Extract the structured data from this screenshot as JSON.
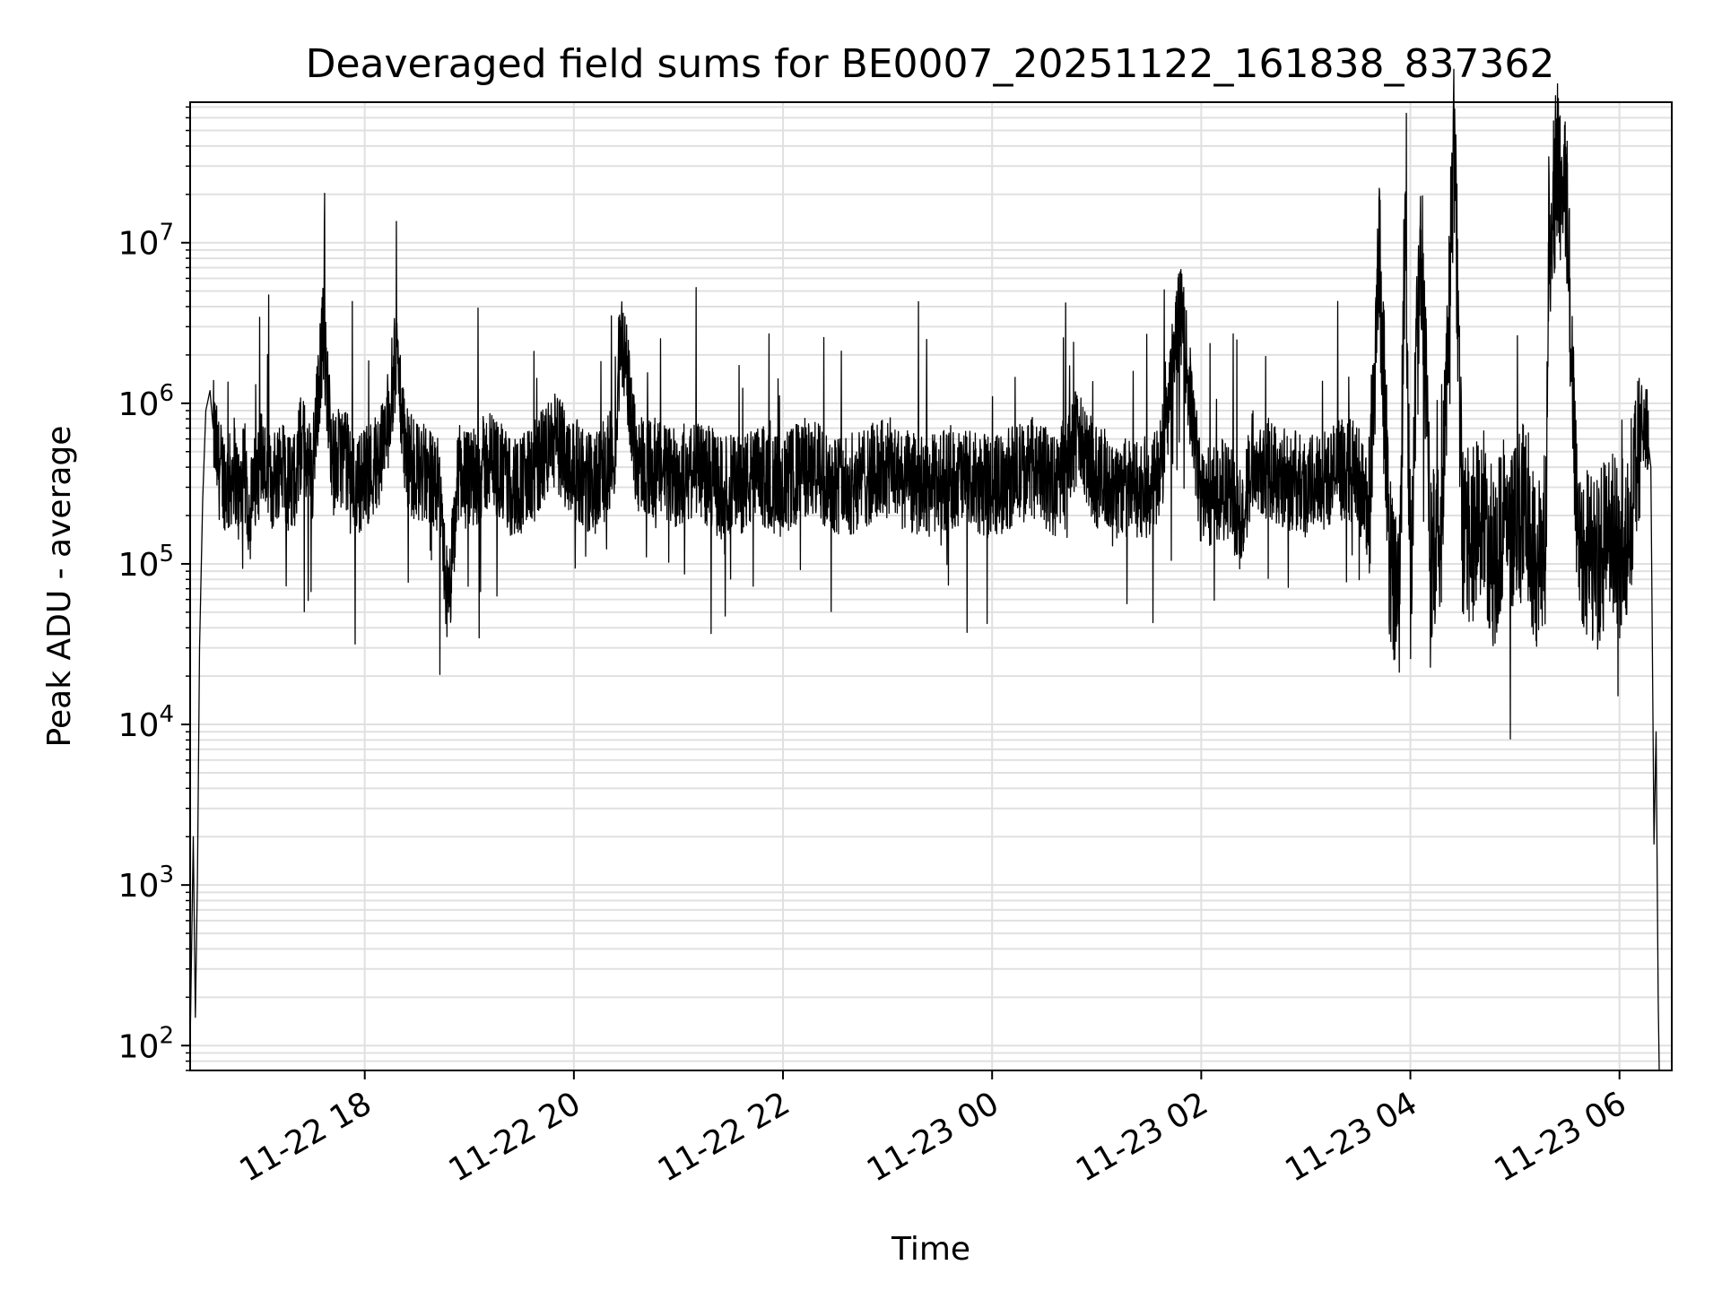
{
  "chart_data": {
    "type": "line",
    "title": "Deaveraged field sums for BE0007_20251122_161838_837362",
    "xlabel": "Time",
    "ylabel": "Peak ADU - average",
    "yscale": "log",
    "ylim": [
      70,
      75000000.0
    ],
    "xlim_hours": [
      16.33,
      30.5
    ],
    "line_color": "#000000",
    "grid_color": "#e0e0e0",
    "grid": true,
    "x_ticks": [
      {
        "hour": 18,
        "label": "11-22 18"
      },
      {
        "hour": 20,
        "label": "11-22 20"
      },
      {
        "hour": 22,
        "label": "11-22 22"
      },
      {
        "hour": 24,
        "label": "11-23 00"
      },
      {
        "hour": 26,
        "label": "11-23 02"
      },
      {
        "hour": 28,
        "label": "11-23 04"
      },
      {
        "hour": 30,
        "label": "11-23 06"
      }
    ],
    "y_ticks": [
      {
        "value": 100,
        "base": "10",
        "exp": "2"
      },
      {
        "value": 1000,
        "base": "10",
        "exp": "3"
      },
      {
        "value": 10000,
        "base": "10",
        "exp": "4"
      },
      {
        "value": 100000,
        "base": "10",
        "exp": "5"
      },
      {
        "value": 1000000,
        "base": "10",
        "exp": "6"
      },
      {
        "value": 10000000,
        "base": "10",
        "exp": "7"
      }
    ],
    "series": [
      {
        "name": "deaveraged field sum",
        "x_hours": [
          16.33,
          16.36,
          16.38,
          16.4,
          16.42,
          16.45,
          16.48,
          16.52,
          16.55,
          16.6,
          16.65,
          16.7,
          16.75,
          16.8,
          16.85,
          16.9,
          17.0,
          17.1,
          17.2,
          17.3,
          17.4,
          17.5,
          17.6,
          17.7,
          17.8,
          17.9,
          18.0,
          18.1,
          18.2,
          18.3,
          18.4,
          18.5,
          18.6,
          18.7,
          18.8,
          18.9,
          19.0,
          19.2,
          19.4,
          19.6,
          19.8,
          20.0,
          20.2,
          20.4,
          20.45,
          20.6,
          20.8,
          21.0,
          21.2,
          21.4,
          21.6,
          21.8,
          22.0,
          22.2,
          22.4,
          22.6,
          22.8,
          23.0,
          23.2,
          23.4,
          23.6,
          23.8,
          24.0,
          24.2,
          24.4,
          24.6,
          24.8,
          25.0,
          25.2,
          25.4,
          25.6,
          25.8,
          26.0,
          26.2,
          26.4,
          26.5,
          26.6,
          26.8,
          27.0,
          27.2,
          27.4,
          27.5,
          27.6,
          27.7,
          27.8,
          27.9,
          27.95,
          28.0,
          28.1,
          28.2,
          28.3,
          28.4,
          28.42,
          28.5,
          28.6,
          28.7,
          28.8,
          28.9,
          29.0,
          29.1,
          29.2,
          29.3,
          29.32,
          29.4,
          29.5,
          29.6,
          29.7,
          29.8,
          29.9,
          30.0,
          30.1,
          30.2,
          30.25,
          30.3,
          30.33,
          30.35,
          30.37,
          30.38
        ],
        "y": [
          100,
          2000,
          150,
          1100,
          30000,
          250000,
          900000,
          1200000,
          700000,
          400000,
          350000,
          300000,
          420000,
          250000,
          380000,
          200000,
          500000,
          300000,
          450000,
          280000,
          600000,
          350000,
          2800000,
          400000,
          500000,
          300000,
          350000,
          420000,
          600000,
          2000000,
          450000,
          380000,
          350000,
          300000,
          50000,
          400000,
          320000,
          450000,
          300000,
          350000,
          600000,
          400000,
          300000,
          500000,
          3000000,
          450000,
          380000,
          350000,
          400000,
          300000,
          320000,
          350000,
          300000,
          400000,
          350000,
          300000,
          350000,
          400000,
          320000,
          300000,
          350000,
          320000,
          300000,
          350000,
          400000,
          300000,
          600000,
          350000,
          300000,
          280000,
          350000,
          4000000,
          250000,
          300000,
          200000,
          500000,
          400000,
          350000,
          300000,
          350000,
          400000,
          350000,
          200000,
          9000000,
          120000,
          60000,
          20000000,
          80000,
          12000000,
          100000,
          150000,
          20000000,
          40000000,
          150000,
          150000,
          200000,
          100000,
          200000,
          150000,
          250000,
          100000,
          150000,
          10000000,
          30000000,
          15000000,
          150000,
          120000,
          100000,
          150000,
          120000,
          200000,
          600000,
          800000,
          400000,
          1800,
          9000,
          200,
          70
        ]
      }
    ]
  }
}
